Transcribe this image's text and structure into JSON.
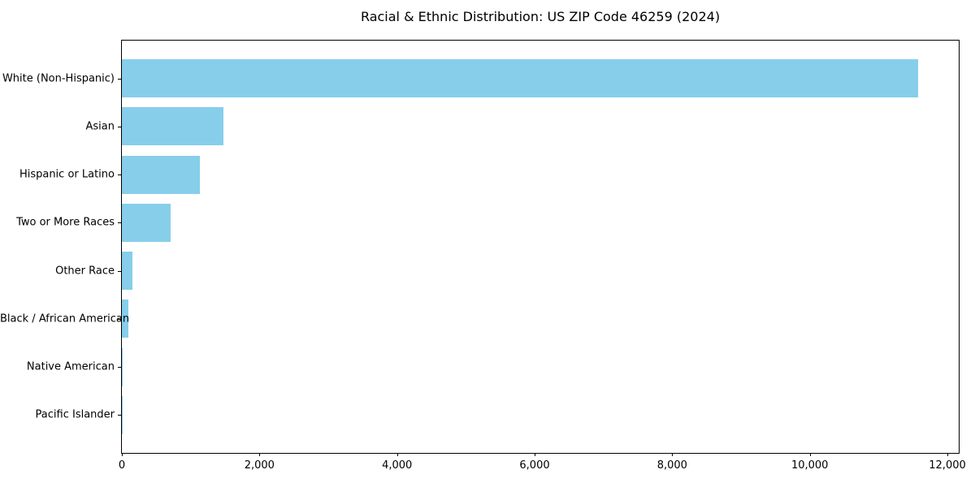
{
  "figure": {
    "background": "#FFFFFF"
  },
  "chart_data": {
    "type": "bar",
    "orientation": "horizontal",
    "title": "Racial & Ethnic Distribution: US ZIP Code 46259 (2024)",
    "xlabel": "",
    "ylabel": "",
    "categories": [
      "White (Non-Hispanic)",
      "Asian",
      "Hispanic or Latino",
      "Two or More Races",
      "Other Race",
      "Black / African American",
      "Native American",
      "Pacific Islander"
    ],
    "values": [
      11580,
      1480,
      1130,
      710,
      155,
      95,
      10,
      3
    ],
    "xlim": [
      0,
      12165
    ],
    "x_ticks": [
      0,
      2000,
      4000,
      6000,
      8000,
      10000,
      12000
    ],
    "x_tick_labels": [
      "0",
      "2,000",
      "4,000",
      "6,000",
      "8,000",
      "10,000",
      "12,000"
    ],
    "grid": false,
    "legend": null,
    "bar_color": "#87CEEB",
    "axis_color": "#000000",
    "text_color": "#000000"
  }
}
